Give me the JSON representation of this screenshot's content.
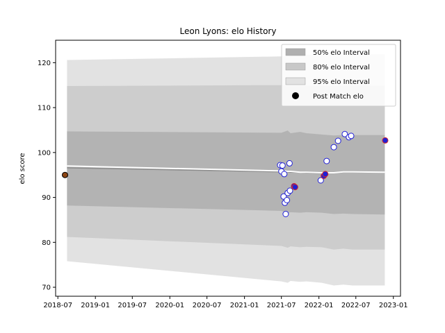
{
  "chart_data": {
    "type": "line",
    "title": "Leon Lyons: elo History",
    "xlabel": "",
    "ylabel": "elo score",
    "x_axis_type": "date",
    "xlim": [
      "2018-06-20",
      "2023-02-05"
    ],
    "ylim": [
      68,
      125
    ],
    "x_ticks": [
      "2018-07",
      "2019-01",
      "2019-07",
      "2020-01",
      "2020-07",
      "2021-01",
      "2021-07",
      "2022-01",
      "2022-07",
      "2023-01"
    ],
    "y_ticks": [
      70,
      80,
      90,
      100,
      110,
      120
    ],
    "grid": false,
    "legend_placement": "top-right",
    "legend": [
      {
        "label": "50% elo Interval",
        "color": "#b0b0b0"
      },
      {
        "label": "80% elo Interval",
        "color": "#c8c8c8"
      },
      {
        "label": "95% elo Interval",
        "color": "#e2e2e2"
      },
      {
        "label": "Post Match elo",
        "color": "#000000"
      }
    ],
    "colors": {
      "band_50": "#b0b0b0",
      "band_80": "#c9c9c9",
      "band_95": "#e2e2e2",
      "median_line": "#8c8c8c",
      "mean_line": "#ffffff",
      "point_edge_blue": "#1f1fd6",
      "point_edge_red": "#d62728",
      "point_fill_dark": "#8b4513"
    },
    "bands": {
      "x": [
        "2018-08-15",
        "2021-07-01",
        "2021-08-01",
        "2021-08-15",
        "2021-10-01",
        "2021-11-01",
        "2022-01-15",
        "2022-03-15",
        "2022-05-01",
        "2022-06-15",
        "2022-11-20"
      ],
      "q025": [
        75.8,
        71.3,
        71.0,
        71.4,
        71.2,
        71.3,
        71.0,
        70.4,
        70.6,
        70.4,
        70.4
      ],
      "q10": [
        81.2,
        79.2,
        78.8,
        79.1,
        78.9,
        79.0,
        78.9,
        78.4,
        78.6,
        78.4,
        78.4
      ],
      "q25": [
        88.2,
        87.0,
        86.5,
        86.7,
        86.6,
        86.7,
        86.6,
        86.3,
        86.4,
        86.3,
        86.2
      ],
      "median": [
        96.6,
        95.7,
        95.7,
        95.6,
        95.6,
        95.5,
        95.4,
        95.5,
        95.6,
        95.6,
        95.6
      ],
      "mean": [
        97.0,
        95.9,
        95.8,
        95.8,
        95.6,
        95.6,
        95.5,
        95.5,
        95.7,
        95.7,
        95.6
      ],
      "q75": [
        104.7,
        104.4,
        104.9,
        104.3,
        104.6,
        104.3,
        104.0,
        103.8,
        103.9,
        103.9,
        103.9
      ],
      "q90": [
        114.8,
        115.0,
        115.0,
        114.9,
        115.0,
        114.9,
        114.8,
        114.8,
        114.9,
        114.9,
        114.9
      ],
      "q975": [
        120.6,
        121.4,
        121.5,
        121.6,
        121.7,
        121.7,
        121.8,
        121.8,
        121.9,
        121.9,
        121.9
      ]
    },
    "series": [
      {
        "name": "Post Match elo",
        "points": [
          {
            "x": "2018-08-05",
            "y": 95.0,
            "edge": "dark"
          },
          {
            "x": "2021-06-25",
            "y": 97.2,
            "edge": "blue"
          },
          {
            "x": "2021-07-01",
            "y": 95.8,
            "edge": "blue"
          },
          {
            "x": "2021-07-06",
            "y": 97.1,
            "edge": "blue"
          },
          {
            "x": "2021-07-15",
            "y": 95.2,
            "edge": "blue"
          },
          {
            "x": "2021-07-12",
            "y": 90.2,
            "edge": "blue"
          },
          {
            "x": "2021-07-18",
            "y": 88.8,
            "edge": "blue"
          },
          {
            "x": "2021-07-22",
            "y": 86.3,
            "edge": "blue"
          },
          {
            "x": "2021-07-28",
            "y": 89.4,
            "edge": "blue"
          },
          {
            "x": "2021-08-01",
            "y": 91.0,
            "edge": "blue"
          },
          {
            "x": "2021-08-10",
            "y": 97.6,
            "edge": "blue"
          },
          {
            "x": "2021-08-12",
            "y": 91.5,
            "edge": "blue"
          },
          {
            "x": "2021-09-01",
            "y": 92.5,
            "edge": "red"
          },
          {
            "x": "2021-09-06",
            "y": 92.3,
            "edge": "red"
          },
          {
            "x": "2022-01-10",
            "y": 93.8,
            "edge": "blue"
          },
          {
            "x": "2022-01-25",
            "y": 94.8,
            "edge": "red"
          },
          {
            "x": "2022-02-01",
            "y": 95.2,
            "edge": "red"
          },
          {
            "x": "2022-02-08",
            "y": 98.1,
            "edge": "blue"
          },
          {
            "x": "2022-03-15",
            "y": 101.2,
            "edge": "blue"
          },
          {
            "x": "2022-04-05",
            "y": 102.6,
            "edge": "blue"
          },
          {
            "x": "2022-05-08",
            "y": 104.1,
            "edge": "blue"
          },
          {
            "x": "2022-05-28",
            "y": 103.4,
            "edge": "blue"
          },
          {
            "x": "2022-06-08",
            "y": 103.7,
            "edge": "blue"
          },
          {
            "x": "2022-11-22",
            "y": 102.7,
            "edge": "red"
          }
        ]
      }
    ]
  }
}
